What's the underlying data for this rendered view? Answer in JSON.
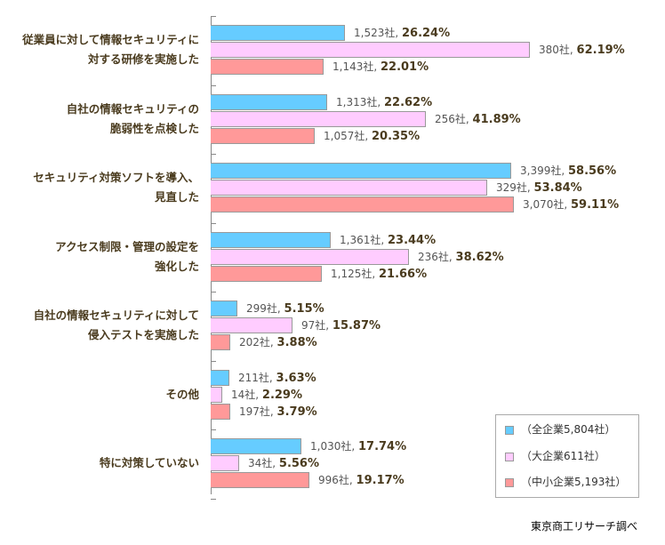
{
  "chart_data": {
    "type": "bar",
    "orientation": "horizontal",
    "title": "",
    "xlabel": "",
    "ylabel": "",
    "categories": [
      [
        "従業員に対して情報セキュリティに",
        "対する研修を実施した"
      ],
      [
        "自社の情報セキュリティの",
        "脆弱性を点検した"
      ],
      [
        "セキュリティ対策ソフトを導入、",
        "見直した"
      ],
      [
        "アクセス制限・管理の設定を",
        "強化した"
      ],
      [
        "自社の情報セキュリティに対して",
        "侵入テストを実施した"
      ],
      [
        "その他"
      ],
      [
        "特に対策していない"
      ]
    ],
    "series": [
      {
        "name": "（全企業5,804社）",
        "color": "#66ccff",
        "counts": [
          "1,523社",
          "1,313社",
          "3,399社",
          "1,361社",
          "299社",
          "211社",
          "1,030社"
        ],
        "values": [
          26.24,
          22.62,
          58.56,
          23.44,
          5.15,
          3.63,
          17.74
        ]
      },
      {
        "name": "（大企業611社）",
        "color": "#ffccff",
        "counts": [
          "380社",
          "256社",
          "329社",
          "236社",
          "97社",
          "14社",
          "34社"
        ],
        "values": [
          62.19,
          41.89,
          53.84,
          38.62,
          15.87,
          2.29,
          5.56
        ]
      },
      {
        "name": "（中小企業5,193社）",
        "color": "#ff9999",
        "counts": [
          "1,143社",
          "1,057社",
          "3,070社",
          "1,125社",
          "202社",
          "197社",
          "996社"
        ],
        "values": [
          22.01,
          20.35,
          59.11,
          21.66,
          3.88,
          3.79,
          19.17
        ]
      }
    ],
    "legend_position": "bottom-right",
    "grid": false
  },
  "source": "東京商工リサーチ調べ"
}
